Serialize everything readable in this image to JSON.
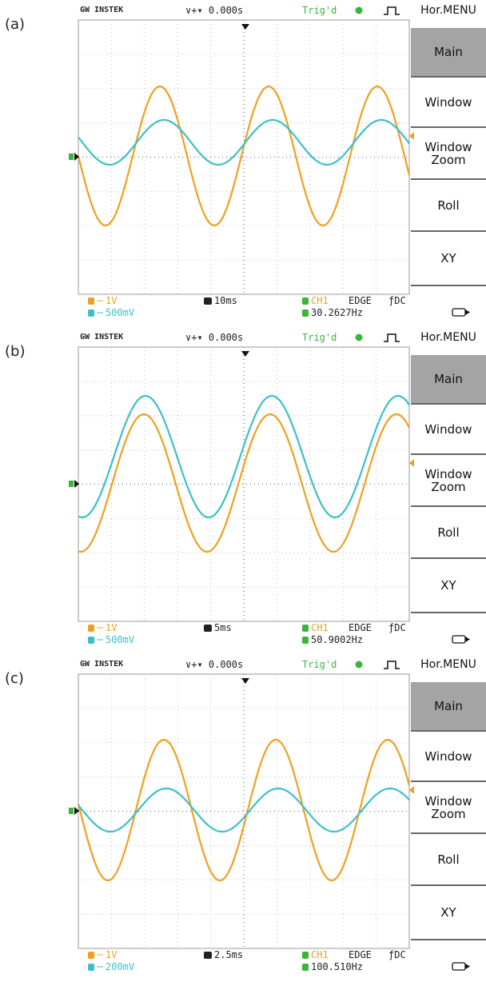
{
  "panels": [
    {
      "label": "(a)",
      "header": {
        "brand": "GW INSTEK",
        "time": "∨+▾ 0.000s",
        "trig": "Trig'd",
        "menu": "Hor.MENU"
      },
      "menu": [
        "Main",
        "Window",
        "Window Zoom",
        "Roll",
        "XY"
      ],
      "info": {
        "ch1_scale": "1V",
        "ch2_scale": "500mV",
        "timebase": "10ms",
        "trigger_source": "CH1",
        "trigger_type": "EDGE",
        "coupling": "ƒDC",
        "frequency": "30.2627Hz"
      }
    },
    {
      "label": "(b)",
      "header": {
        "brand": "GW INSTEK",
        "time": "∨+▾ 0.000s",
        "trig": "Trig'd",
        "menu": "Hor.MENU"
      },
      "menu": [
        "Main",
        "Window",
        "Window Zoom",
        "Roll",
        "XY"
      ],
      "info": {
        "ch1_scale": "1V",
        "ch2_scale": "500mV",
        "timebase": "5ms",
        "trigger_source": "CH1",
        "trigger_type": "EDGE",
        "coupling": "ƒDC",
        "frequency": "50.9002Hz"
      }
    },
    {
      "label": "(c)",
      "header": {
        "brand": "GW INSTEK",
        "time": "∨+▾ 0.000s",
        "trig": "Trig'd",
        "menu": "Hor.MENU"
      },
      "menu": [
        "Main",
        "Window",
        "Window Zoom",
        "Roll",
        "XY"
      ],
      "info": {
        "ch1_scale": "1V",
        "ch2_scale": "200mV",
        "timebase": "2.5ms",
        "trigger_source": "CH1",
        "trigger_type": "EDGE",
        "coupling": "ƒDC",
        "frequency": "100.510Hz"
      }
    }
  ]
}
